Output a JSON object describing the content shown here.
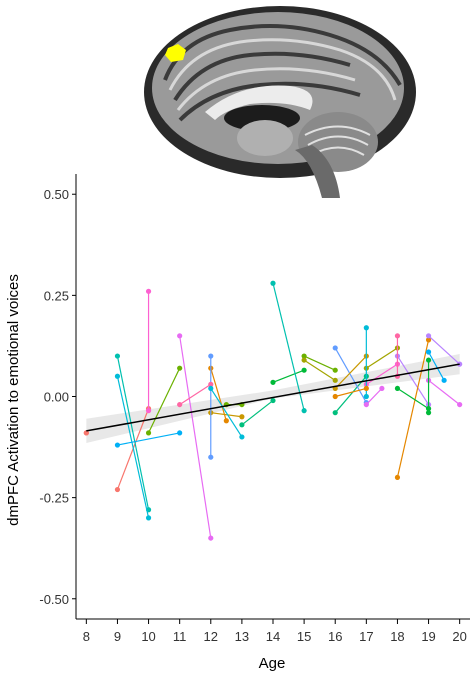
{
  "chart_data": {
    "type": "scatter",
    "xlabel": "Age",
    "ylabel": "dmPFC Activation to emotional voices",
    "xlim": [
      7.7,
      20.3
    ],
    "ylim": [
      -0.55,
      0.55
    ],
    "x_ticks": [
      8,
      9,
      10,
      11,
      12,
      13,
      14,
      15,
      16,
      17,
      18,
      19,
      20
    ],
    "y_ticks": [
      0.5,
      0.25,
      0.0,
      -0.25,
      -0.5
    ],
    "y_tick_labels": [
      "0.50",
      "0.25",
      "0.00",
      "-0.25",
      "-0.50"
    ],
    "grid": false,
    "legend": "none",
    "regression_line": {
      "x": [
        8,
        20
      ],
      "y": [
        -0.085,
        0.08
      ],
      "color": "#000000"
    },
    "confidence_band": {
      "x": [
        8,
        14,
        20
      ],
      "lower": [
        -0.115,
        -0.005,
        0.055
      ],
      "upper": [
        -0.055,
        0.015,
        0.105
      ]
    },
    "series": [
      {
        "color": "#f8766d",
        "points": [
          [
            9,
            -0.23
          ],
          [
            10,
            -0.03
          ]
        ]
      },
      {
        "color": "#e58700",
        "points": [
          [
            12,
            0.07
          ],
          [
            12.5,
            -0.06
          ]
        ]
      },
      {
        "color": "#c99800",
        "points": [
          [
            12,
            -0.04
          ],
          [
            13,
            -0.05
          ]
        ]
      },
      {
        "color": "#a3a500",
        "points": [
          [
            17,
            0.07
          ],
          [
            18,
            0.12
          ]
        ]
      },
      {
        "color": "#6bb100",
        "points": [
          [
            10,
            -0.09
          ],
          [
            11,
            0.07
          ]
        ]
      },
      {
        "color": "#00ba38",
        "points": [
          [
            14,
            0.035
          ],
          [
            15,
            0.065
          ]
        ]
      },
      {
        "color": "#00bf7d",
        "points": [
          [
            16,
            -0.04
          ],
          [
            17,
            0.05
          ]
        ]
      },
      {
        "color": "#00c0af",
        "points": [
          [
            9,
            0.1
          ],
          [
            10,
            -0.28
          ]
        ]
      },
      {
        "color": "#00bcd8",
        "points": [
          [
            9,
            0.05
          ],
          [
            10,
            -0.3
          ]
        ]
      },
      {
        "color": "#00b0f6",
        "points": [
          [
            9,
            -0.12
          ],
          [
            11,
            -0.09
          ]
        ]
      },
      {
        "color": "#619cff",
        "points": [
          [
            12,
            0.1
          ],
          [
            12,
            -0.15
          ]
        ]
      },
      {
        "color": "#b983ff",
        "points": [
          [
            18,
            0.1
          ],
          [
            19,
            -0.02
          ]
        ]
      },
      {
        "color": "#e76bf3",
        "points": [
          [
            11,
            0.15
          ],
          [
            12,
            -0.35
          ]
        ]
      },
      {
        "color": "#fd61d1",
        "points": [
          [
            10,
            0.26
          ],
          [
            10,
            -0.035
          ]
        ]
      },
      {
        "color": "#ff67a4",
        "points": [
          [
            11,
            -0.02
          ],
          [
            12,
            0.03
          ]
        ]
      },
      {
        "color": "#00c0af",
        "points": [
          [
            14,
            0.28
          ],
          [
            15,
            -0.035
          ]
        ]
      },
      {
        "color": "#619cff",
        "points": [
          [
            16,
            0.12
          ],
          [
            17,
            -0.015
          ]
        ]
      },
      {
        "color": "#e58700",
        "points": [
          [
            18,
            -0.2
          ],
          [
            19,
            0.14
          ]
        ]
      },
      {
        "color": "#00ba38",
        "points": [
          [
            18,
            0.02
          ],
          [
            19,
            -0.03
          ]
        ]
      },
      {
        "color": "#b983ff",
        "points": [
          [
            19,
            0.15
          ],
          [
            20,
            0.08
          ]
        ]
      },
      {
        "color": "#00b0f6",
        "points": [
          [
            19,
            0.11
          ],
          [
            19.5,
            0.04
          ]
        ]
      },
      {
        "color": "#e76bf3",
        "points": [
          [
            19,
            0.04
          ],
          [
            20,
            -0.02
          ]
        ]
      },
      {
        "color": "#6bb100",
        "points": [
          [
            15,
            0.1
          ],
          [
            16,
            0.065
          ]
        ]
      },
      {
        "color": "#c99800",
        "points": [
          [
            16,
            0.02
          ],
          [
            17,
            0.1
          ]
        ]
      },
      {
        "color": "#fd61d1",
        "points": [
          [
            17,
            0.03
          ],
          [
            18,
            0.08
          ]
        ]
      },
      {
        "color": "#00bcd8",
        "points": [
          [
            17,
            0.17
          ],
          [
            17,
            0.0
          ]
        ]
      },
      {
        "color": "#a3a500",
        "points": [
          [
            15,
            0.09
          ],
          [
            16,
            0.04
          ]
        ]
      },
      {
        "color": "#00bf7d",
        "points": [
          [
            13,
            -0.07
          ],
          [
            14,
            -0.01
          ]
        ]
      },
      {
        "color": "#ff67a4",
        "points": [
          [
            18,
            0.15
          ],
          [
            18,
            0.05
          ]
        ]
      },
      {
        "color": "#f8766d",
        "points": [
          [
            8,
            -0.09
          ],
          [
            8,
            -0.09
          ]
        ]
      },
      {
        "color": "#6bb100",
        "points": [
          [
            12.5,
            -0.02
          ],
          [
            13,
            -0.02
          ]
        ]
      },
      {
        "color": "#00bcd8",
        "points": [
          [
            12,
            0.02
          ],
          [
            13,
            -0.1
          ]
        ]
      },
      {
        "color": "#e76bf3",
        "points": [
          [
            17.5,
            0.02
          ],
          [
            17,
            -0.02
          ]
        ]
      },
      {
        "color": "#e58700",
        "points": [
          [
            16,
            0.0
          ],
          [
            17,
            0.02
          ]
        ]
      },
      {
        "color": "#00ba38",
        "points": [
          [
            19,
            0.09
          ],
          [
            19,
            -0.04
          ]
        ]
      }
    ]
  }
}
